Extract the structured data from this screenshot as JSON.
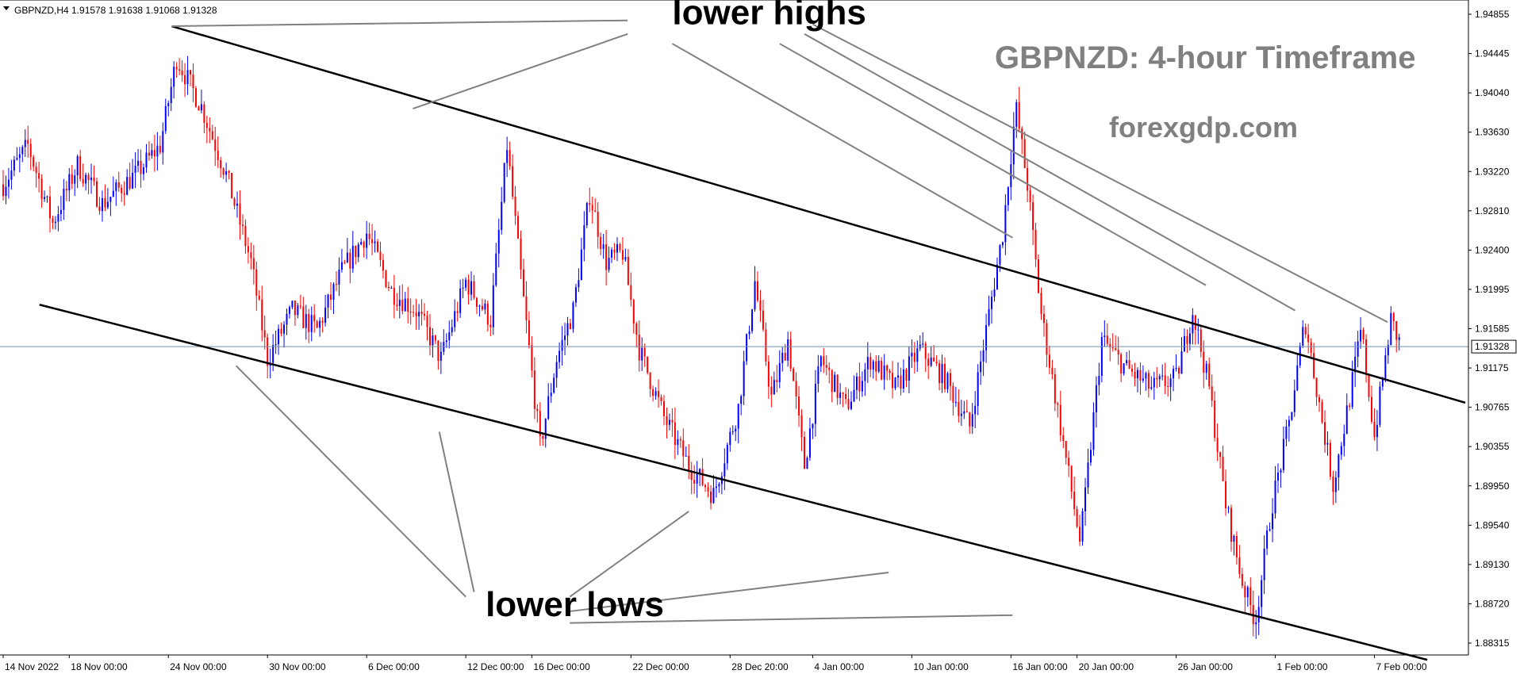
{
  "chart_data": {
    "type": "candlestick",
    "symbol_line": "GBPNZD,H4  1.91578 1.91638 1.91068 1.91328",
    "title": "GBPNZD: 4-hour Timeframe",
    "watermark": "forexgdp.com",
    "ylim": [
      1.8815,
      1.949
    ],
    "x_range_days": [
      0,
      88.5
    ],
    "y_ticks": [
      "1.94855",
      "1.94445",
      "1.94040",
      "1.93630",
      "1.93220",
      "1.92810",
      "1.92400",
      "1.91995",
      "1.91585",
      "1.91175",
      "1.90765",
      "1.90355",
      "1.89950",
      "1.89540",
      "1.89130",
      "1.88720",
      "1.88315"
    ],
    "x_ticks": [
      {
        "day": 0,
        "label": "14 Nov 2022"
      },
      {
        "day": 4,
        "label": "18 Nov 00:00"
      },
      {
        "day": 10,
        "label": "24 Nov 00:00"
      },
      {
        "day": 16,
        "label": "30 Nov 00:00"
      },
      {
        "day": 22,
        "label": "6 Dec 00:00"
      },
      {
        "day": 28,
        "label": "12 Dec 00:00"
      },
      {
        "day": 32,
        "label": "16 Dec 00:00"
      },
      {
        "day": 38,
        "label": "22 Dec 00:00"
      },
      {
        "day": 44,
        "label": "28 Dec 20:00"
      },
      {
        "day": 49,
        "label": "4 Jan 00:00"
      },
      {
        "day": 55,
        "label": "10 Jan 00:00"
      },
      {
        "day": 61,
        "label": "16 Jan 00:00"
      },
      {
        "day": 65,
        "label": "20 Jan 00:00"
      },
      {
        "day": 71,
        "label": "26 Jan 00:00"
      },
      {
        "day": 77,
        "label": "1 Feb 00:00"
      },
      {
        "day": 83,
        "label": "7 Feb 00:00"
      }
    ],
    "current_price": "1.91328",
    "current_price_value": 1.91328,
    "price_path": [
      {
        "day": 0,
        "price": 1.93
      },
      {
        "day": 1.5,
        "price": 1.934
      },
      {
        "day": 3,
        "price": 1.926
      },
      {
        "day": 4.5,
        "price": 1.932
      },
      {
        "day": 6,
        "price": 1.928
      },
      {
        "day": 8,
        "price": 1.931
      },
      {
        "day": 9.5,
        "price": 1.934
      },
      {
        "day": 10.5,
        "price": 1.943
      },
      {
        "day": 12,
        "price": 1.938
      },
      {
        "day": 13.5,
        "price": 1.931
      },
      {
        "day": 15,
        "price": 1.922
      },
      {
        "day": 16,
        "price": 1.912
      },
      {
        "day": 17.5,
        "price": 1.917
      },
      {
        "day": 19,
        "price": 1.915
      },
      {
        "day": 20.5,
        "price": 1.921
      },
      {
        "day": 22,
        "price": 1.925
      },
      {
        "day": 23.5,
        "price": 1.919
      },
      {
        "day": 25,
        "price": 1.917
      },
      {
        "day": 26.5,
        "price": 1.912
      },
      {
        "day": 28,
        "price": 1.92
      },
      {
        "day": 29.5,
        "price": 1.916
      },
      {
        "day": 30.5,
        "price": 1.934
      },
      {
        "day": 31.5,
        "price": 1.918
      },
      {
        "day": 32.5,
        "price": 1.903
      },
      {
        "day": 33.5,
        "price": 1.912
      },
      {
        "day": 34.5,
        "price": 1.917
      },
      {
        "day": 35.5,
        "price": 1.929
      },
      {
        "day": 36.5,
        "price": 1.922
      },
      {
        "day": 37.5,
        "price": 1.923
      },
      {
        "day": 38.5,
        "price": 1.913
      },
      {
        "day": 40,
        "price": 1.906
      },
      {
        "day": 41.5,
        "price": 1.901
      },
      {
        "day": 43,
        "price": 1.898
      },
      {
        "day": 44.5,
        "price": 1.907
      },
      {
        "day": 45.5,
        "price": 1.92
      },
      {
        "day": 46.5,
        "price": 1.908
      },
      {
        "day": 47.5,
        "price": 1.914
      },
      {
        "day": 48.5,
        "price": 1.901
      },
      {
        "day": 49.5,
        "price": 1.912
      },
      {
        "day": 51,
        "price": 1.907
      },
      {
        "day": 52.5,
        "price": 1.912
      },
      {
        "day": 54,
        "price": 1.909
      },
      {
        "day": 55.5,
        "price": 1.913
      },
      {
        "day": 57,
        "price": 1.91
      },
      {
        "day": 58.5,
        "price": 1.905
      },
      {
        "day": 59.5,
        "price": 1.915
      },
      {
        "day": 60.5,
        "price": 1.925
      },
      {
        "day": 61.3,
        "price": 1.938
      },
      {
        "day": 62,
        "price": 1.93
      },
      {
        "day": 62.8,
        "price": 1.917
      },
      {
        "day": 63.5,
        "price": 1.91
      },
      {
        "day": 64.5,
        "price": 1.9
      },
      {
        "day": 65.2,
        "price": 1.893
      },
      {
        "day": 66.5,
        "price": 1.914
      },
      {
        "day": 68,
        "price": 1.911
      },
      {
        "day": 69.5,
        "price": 1.909
      },
      {
        "day": 71,
        "price": 1.91
      },
      {
        "day": 72,
        "price": 1.917
      },
      {
        "day": 73,
        "price": 1.909
      },
      {
        "day": 74,
        "price": 1.897
      },
      {
        "day": 75,
        "price": 1.889
      },
      {
        "day": 75.8,
        "price": 1.885
      },
      {
        "day": 76.8,
        "price": 1.897
      },
      {
        "day": 77.8,
        "price": 1.905
      },
      {
        "day": 78.8,
        "price": 1.916
      },
      {
        "day": 79.8,
        "price": 1.906
      },
      {
        "day": 80.5,
        "price": 1.899
      },
      {
        "day": 81.5,
        "price": 1.908
      },
      {
        "day": 82.2,
        "price": 1.915
      },
      {
        "day": 83,
        "price": 1.904
      },
      {
        "day": 84,
        "price": 1.916
      },
      {
        "day": 84.6,
        "price": 1.9133
      }
    ],
    "channel_lines": [
      {
        "name": "upper",
        "from": {
          "day": 10.2,
          "price": 1.9463
        },
        "to": {
          "day": 88.5,
          "price": 1.9075
        }
      },
      {
        "name": "lower",
        "from": {
          "day": 2.2,
          "price": 1.9176
        },
        "to": {
          "day": 86.2,
          "price": 1.881
        }
      }
    ],
    "annotations": [
      {
        "text": "lower highs",
        "anchor": {
          "day": 40.5,
          "price": 1.9465
        },
        "pointers": [
          {
            "from": {
              "day": 37.8,
              "price": 1.9469
            },
            "to": {
              "day": 10.2,
              "price": 1.9463
            }
          },
          {
            "from": {
              "day": 37.8,
              "price": 1.9455
            },
            "to": {
              "day": 24.8,
              "price": 1.9378
            }
          },
          {
            "from": {
              "day": 40.5,
              "price": 1.9445
            },
            "to": {
              "day": 61.1,
              "price": 1.9245
            }
          },
          {
            "from": {
              "day": 47,
              "price": 1.9445
            },
            "to": {
              "day": 72.8,
              "price": 1.9196
            }
          },
          {
            "from": {
              "day": 48.5,
              "price": 1.9455
            },
            "to": {
              "day": 78.2,
              "price": 1.917
            }
          },
          {
            "from": {
              "day": 49,
              "price": 1.9465
            },
            "to": {
              "day": 83.8,
              "price": 1.9158
            }
          }
        ]
      },
      {
        "text": "lower lows",
        "anchor": {
          "day": 29.2,
          "price": 1.8855
        },
        "pointers": [
          {
            "from": {
              "day": 28,
              "price": 1.8875
            },
            "to": {
              "day": 14.1,
              "price": 1.9113
            }
          },
          {
            "from": {
              "day": 28.5,
              "price": 1.888
            },
            "to": {
              "day": 26.4,
              "price": 1.9045
            }
          },
          {
            "from": {
              "day": 34.3,
              "price": 1.8875
            },
            "to": {
              "day": 41.5,
              "price": 1.8963
            }
          },
          {
            "from": {
              "day": 34.3,
              "price": 1.886
            },
            "to": {
              "day": 53.6,
              "price": 1.89
            }
          },
          {
            "from": {
              "day": 34.3,
              "price": 1.8848
            },
            "to": {
              "day": 61.1,
              "price": 1.8856
            }
          }
        ]
      }
    ],
    "colors": {
      "up_candle": "#0000ff",
      "down_candle": "#ff0000",
      "channel": "#000000",
      "pointer": "#808080",
      "price_line": "#7090a8"
    },
    "grid": false
  }
}
